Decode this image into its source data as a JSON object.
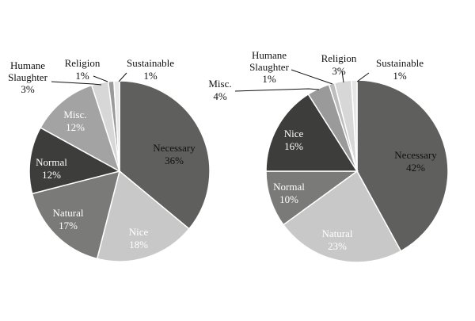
{
  "chart_data": [
    {
      "type": "pie",
      "slices": [
        {
          "label": "Necessary",
          "pct_text": "36%",
          "value": 36,
          "color": "#5f5f5d"
        },
        {
          "label": "Nice",
          "pct_text": "18%",
          "value": 18,
          "color": "#c8c8c8"
        },
        {
          "label": "Natural",
          "pct_text": "17%",
          "value": 17,
          "color": "#7a7a78"
        },
        {
          "label": "Normal",
          "pct_text": "12%",
          "value": 12,
          "color": "#3d3d3b"
        },
        {
          "label": "Misc.",
          "pct_text": "12%",
          "value": 12,
          "color": "#a3a3a3"
        },
        {
          "label": "Humane Slaughter",
          "pct_text": "3%",
          "value": 3,
          "color": "#d7d7d7"
        },
        {
          "label": "Religion",
          "pct_text": "1%",
          "value": 1,
          "color": "#9a9a9a"
        },
        {
          "label": "Sustainable",
          "pct_text": "1%",
          "value": 1,
          "color": "#e6e6e6"
        }
      ]
    },
    {
      "type": "pie",
      "slices": [
        {
          "label": "Necessary",
          "pct_text": "42%",
          "value": 42,
          "color": "#5f5f5d"
        },
        {
          "label": "Natural",
          "pct_text": "23%",
          "value": 23,
          "color": "#c8c8c8"
        },
        {
          "label": "Normal",
          "pct_text": "10%",
          "value": 10,
          "color": "#7a7a78"
        },
        {
          "label": "Nice",
          "pct_text": "16%",
          "value": 16,
          "color": "#3d3d3b"
        },
        {
          "label": "Misc.",
          "pct_text": "4%",
          "value": 4,
          "color": "#9a9a9a"
        },
        {
          "label": "Humane Slaughter",
          "pct_text": "1%",
          "value": 1,
          "color": "#bdbdbd"
        },
        {
          "label": "Religion",
          "pct_text": "3%",
          "value": 3,
          "color": "#d7d7d7"
        },
        {
          "label": "Sustainable",
          "pct_text": "1%",
          "value": 1,
          "color": "#e6e6e6"
        }
      ]
    }
  ]
}
